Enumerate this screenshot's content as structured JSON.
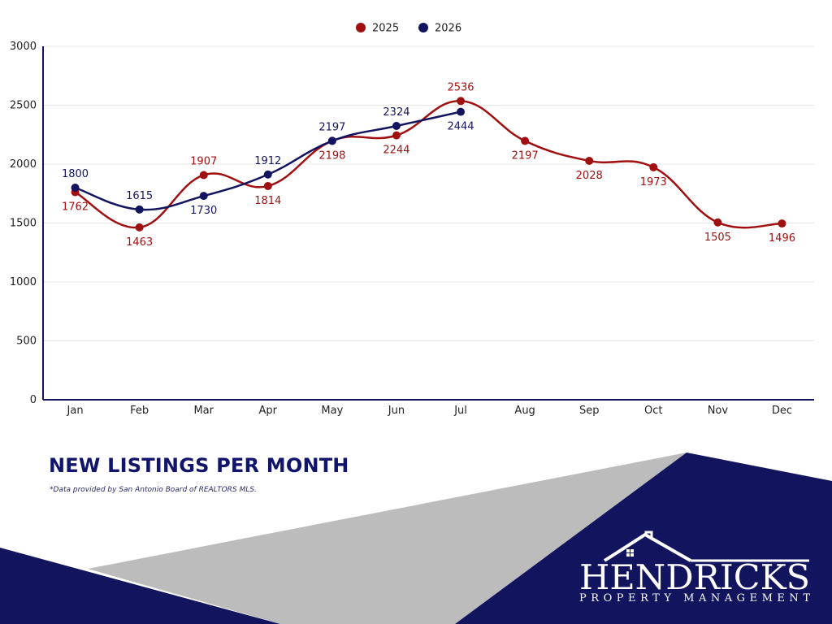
{
  "chart_data": {
    "type": "line",
    "categories": [
      "Jan",
      "Feb",
      "Mar",
      "Apr",
      "May",
      "Jun",
      "Jul",
      "Aug",
      "Sep",
      "Oct",
      "Nov",
      "Dec"
    ],
    "series": [
      {
        "name": "2025",
        "color": "#a01010",
        "values": [
          1762,
          1463,
          1907,
          1814,
          2198,
          2244,
          2536,
          2197,
          2028,
          1973,
          1505,
          1496
        ]
      },
      {
        "name": "2026",
        "color": "#12145e",
        "values": [
          1800,
          1615,
          1730,
          1912,
          2197,
          2324,
          2444,
          null,
          null,
          null,
          null,
          null
        ]
      }
    ],
    "y_ticks": [
      "0",
      "500",
      "1000",
      "1500",
      "2000",
      "2500",
      "3000"
    ],
    "ylim": [
      0,
      3000
    ],
    "grid": true,
    "legend_placement": "top-center"
  },
  "title": "NEW LISTINGS PER MONTH",
  "source_note": "*Data provided by San Antonio Board of REALTORS MLS.",
  "brand": {
    "name": "HENDRICKS",
    "tagline": "PROPERTY MANAGEMENT"
  },
  "colors": {
    "navy": "#12145e",
    "red": "#a01010",
    "gray": "#bcbcbc"
  }
}
